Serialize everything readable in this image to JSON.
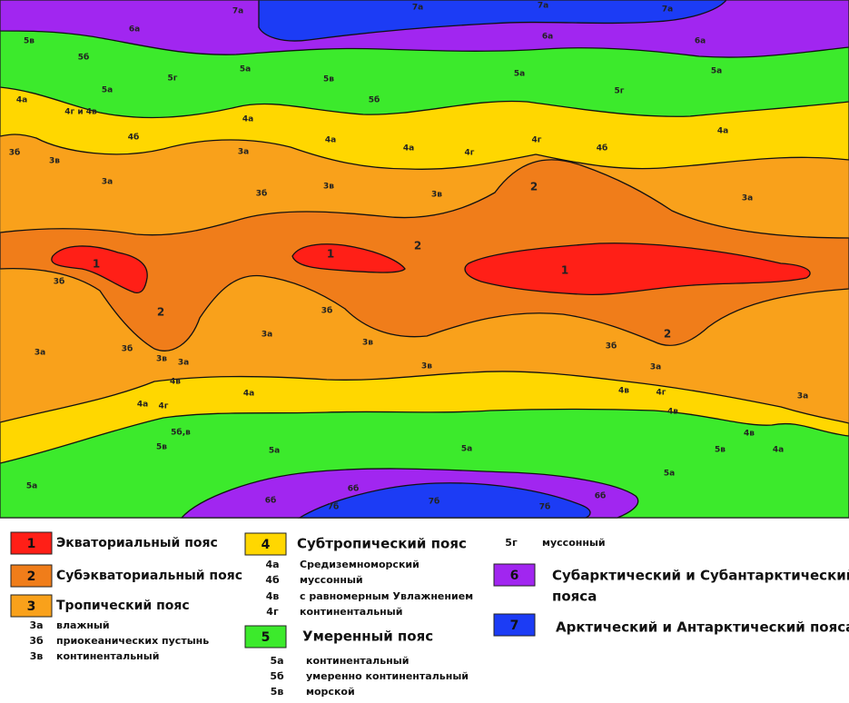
{
  "map": {
    "labels": [
      "7а",
      "7а",
      "7а",
      "7а",
      "6а",
      "6а",
      "6а",
      "5в",
      "5б",
      "5а",
      "5а",
      "5а",
      "5а",
      "5г",
      "5г",
      "5в",
      "5б",
      "4а",
      "4а",
      "4а",
      "4а",
      "4г и 4в",
      "4б",
      "4б",
      "4а",
      "4г",
      "4г",
      "3б",
      "3б",
      "3в",
      "3в",
      "3в",
      "3а",
      "3а",
      "3а",
      "2",
      "2",
      "2",
      "2",
      "1",
      "1",
      "1",
      "3б",
      "3б",
      "3б",
      "3б",
      "3а",
      "3а",
      "3а",
      "3а",
      "3а",
      "3в",
      "3в",
      "3в",
      "4в",
      "4в",
      "4в",
      "4а",
      "4а",
      "4а",
      "4г",
      "4г",
      "5б,в",
      "4в",
      "5в",
      "5в",
      "5а",
      "5а",
      "5а",
      "5а",
      "6б",
      "6б",
      "6б",
      "7б",
      "7б",
      "7б"
    ]
  },
  "legend": {
    "belts": [
      {
        "number": "1",
        "name": [
          "Экваториальный пояс"
        ]
      },
      {
        "number": "2",
        "name": [
          "Субэкваториальный пояс"
        ]
      },
      {
        "number": "3",
        "name": [
          "Тропический пояс"
        ]
      },
      {
        "number": "4",
        "name": [
          "Субтропический пояс"
        ]
      },
      {
        "number": "5",
        "name": [
          "Умеренный пояс"
        ]
      },
      {
        "number": "6",
        "name": [
          "Субарктический и Субантарктический",
          "пояса"
        ]
      },
      {
        "number": "7",
        "name": [
          "Арктический и Антарктический пояса"
        ]
      }
    ],
    "subtypes": [
      {
        "code": "3а",
        "name": "влажный"
      },
      {
        "code": "3б",
        "name": "приокеанических пустынь"
      },
      {
        "code": "3в",
        "name": "континентальный"
      },
      {
        "code": "4а",
        "name": "Средиземноморский"
      },
      {
        "code": "4б",
        "name": "муссонный"
      },
      {
        "code": "4в",
        "name": "с равномерным Увлажнением"
      },
      {
        "code": "4г",
        "name": "континентальный"
      },
      {
        "code": "5а",
        "name": "континентальный"
      },
      {
        "code": "5б",
        "name": "умеренно континентальный"
      },
      {
        "code": "5в",
        "name": "морской"
      },
      {
        "code": "5г",
        "name": "муссонный"
      }
    ]
  }
}
